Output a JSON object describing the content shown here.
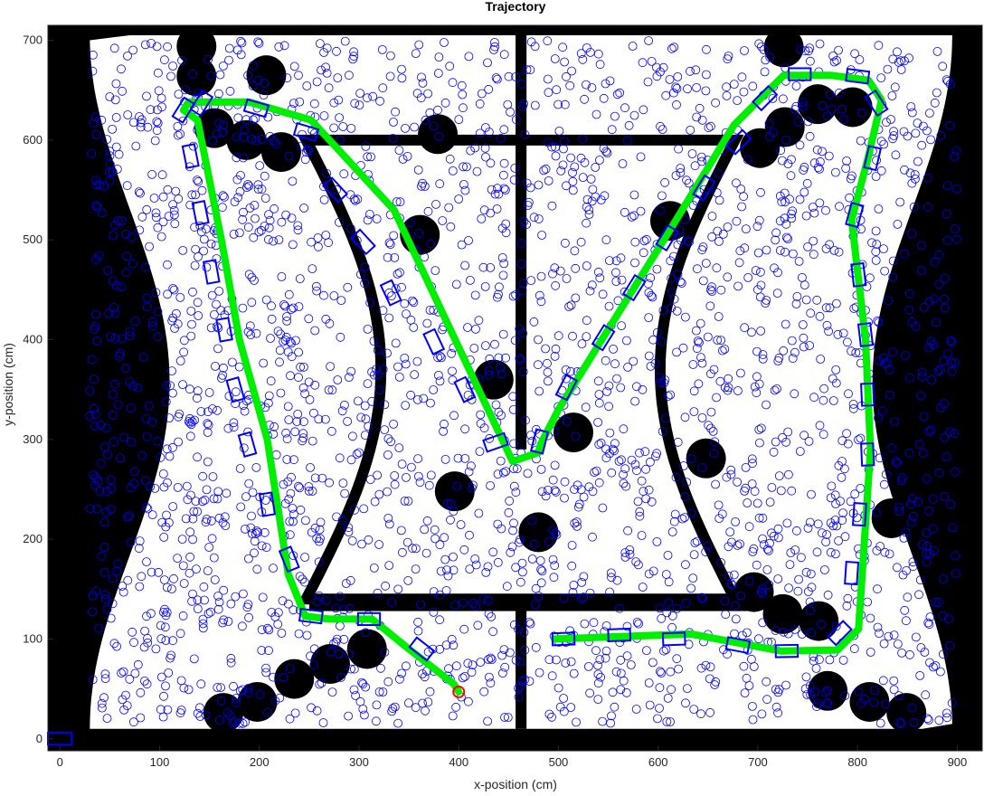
{
  "chart_data": {
    "type": "scatter",
    "title": "Trajectory",
    "xlabel": "x-position (cm)",
    "ylabel": "y-position (cm)",
    "xlim": [
      -12,
      925
    ],
    "ylim": [
      -12,
      715
    ],
    "xticks": [
      0,
      100,
      200,
      300,
      400,
      500,
      600,
      700,
      800,
      900
    ],
    "yticks": [
      0,
      100,
      200,
      300,
      400,
      500,
      600,
      700
    ],
    "grid": false,
    "colors": {
      "walls": "#000000",
      "free_space": "#ffffff",
      "particles": "#0000ff",
      "path": "#00ee00",
      "pose_boxes": "#0000ff",
      "start_marker": "#ff0000"
    },
    "arena": {
      "outer_x": [
        0,
        925
      ],
      "outer_y": [
        0,
        715
      ],
      "center_wall_top": {
        "x": [
          455,
          470
        ],
        "y": [
          290,
          705
        ]
      },
      "center_wall_bottom": {
        "x": [
          455,
          470
        ],
        "y": [
          10,
          130
        ]
      },
      "inner_partition_top_y": 140,
      "inner_partition_bottom_y": 130
    },
    "obstacles": [
      {
        "x": 137,
        "y": 694
      },
      {
        "x": 137,
        "y": 664
      },
      {
        "x": 207,
        "y": 665
      },
      {
        "x": 155,
        "y": 612
      },
      {
        "x": 187,
        "y": 600
      },
      {
        "x": 222,
        "y": 588
      },
      {
        "x": 379,
        "y": 606
      },
      {
        "x": 361,
        "y": 505
      },
      {
        "x": 435,
        "y": 360
      },
      {
        "x": 396,
        "y": 248
      },
      {
        "x": 480,
        "y": 207
      },
      {
        "x": 515,
        "y": 307
      },
      {
        "x": 612,
        "y": 519
      },
      {
        "x": 726,
        "y": 693
      },
      {
        "x": 760,
        "y": 636
      },
      {
        "x": 795,
        "y": 633
      },
      {
        "x": 727,
        "y": 613
      },
      {
        "x": 702,
        "y": 592
      },
      {
        "x": 648,
        "y": 281
      },
      {
        "x": 834,
        "y": 221
      },
      {
        "x": 696,
        "y": 147
      },
      {
        "x": 725,
        "y": 125
      },
      {
        "x": 761,
        "y": 118
      },
      {
        "x": 308,
        "y": 90
      },
      {
        "x": 271,
        "y": 75
      },
      {
        "x": 235,
        "y": 60
      },
      {
        "x": 198,
        "y": 37
      },
      {
        "x": 164,
        "y": 26
      },
      {
        "x": 770,
        "y": 48
      },
      {
        "x": 812,
        "y": 37
      },
      {
        "x": 849,
        "y": 26
      }
    ],
    "path": {
      "x": [
        400,
        395,
        350,
        313,
        270,
        246,
        229,
        208,
        180,
        162,
        138,
        124,
        129,
        190,
        218,
        252,
        335,
        454,
        480,
        482,
        500,
        612,
        676,
        726,
        773,
        811,
        824,
        810,
        794,
        808,
        813,
        801,
        780,
        723,
        633,
        496
      ],
      "y": [
        47,
        55,
        90,
        120,
        120,
        123,
        165,
        300,
        400,
        500,
        620,
        630,
        638,
        638,
        630,
        620,
        530,
        278,
        287,
        295,
        330,
        510,
        615,
        665,
        665,
        660,
        640,
        580,
        520,
        400,
        290,
        110,
        89,
        88,
        105,
        100
      ]
    },
    "pose_boxes": [
      {
        "x": 363,
        "y": 90
      },
      {
        "x": 310,
        "y": 120
      },
      {
        "x": 252,
        "y": 123
      },
      {
        "x": 230,
        "y": 180
      },
      {
        "x": 208,
        "y": 235
      },
      {
        "x": 188,
        "y": 295
      },
      {
        "x": 176,
        "y": 350
      },
      {
        "x": 165,
        "y": 410
      },
      {
        "x": 152,
        "y": 468
      },
      {
        "x": 141,
        "y": 527
      },
      {
        "x": 131,
        "y": 584
      },
      {
        "x": 124,
        "y": 630
      },
      {
        "x": 142,
        "y": 637
      },
      {
        "x": 197,
        "y": 632
      },
      {
        "x": 247,
        "y": 608
      },
      {
        "x": 276,
        "y": 550
      },
      {
        "x": 304,
        "y": 498
      },
      {
        "x": 332,
        "y": 447
      },
      {
        "x": 375,
        "y": 398
      },
      {
        "x": 406,
        "y": 350
      },
      {
        "x": 437,
        "y": 297
      },
      {
        "x": 481,
        "y": 298
      },
      {
        "x": 508,
        "y": 352
      },
      {
        "x": 545,
        "y": 402
      },
      {
        "x": 576,
        "y": 452
      },
      {
        "x": 609,
        "y": 502
      },
      {
        "x": 646,
        "y": 552
      },
      {
        "x": 681,
        "y": 598
      },
      {
        "x": 707,
        "y": 642
      },
      {
        "x": 742,
        "y": 666
      },
      {
        "x": 800,
        "y": 664
      },
      {
        "x": 819,
        "y": 637
      },
      {
        "x": 815,
        "y": 582
      },
      {
        "x": 797,
        "y": 525
      },
      {
        "x": 801,
        "y": 465
      },
      {
        "x": 808,
        "y": 405
      },
      {
        "x": 810,
        "y": 345
      },
      {
        "x": 810,
        "y": 285
      },
      {
        "x": 802,
        "y": 225
      },
      {
        "x": 794,
        "y": 166
      },
      {
        "x": 782,
        "y": 106
      },
      {
        "x": 729,
        "y": 88
      },
      {
        "x": 680,
        "y": 94
      },
      {
        "x": 616,
        "y": 100
      },
      {
        "x": 561,
        "y": 104
      },
      {
        "x": 505,
        "y": 100
      }
    ],
    "start_marker": {
      "x": 400,
      "y": 47
    },
    "origin_box": {
      "x": 0,
      "y": 0
    },
    "particle_count": 2600,
    "particle_seed": 7
  }
}
